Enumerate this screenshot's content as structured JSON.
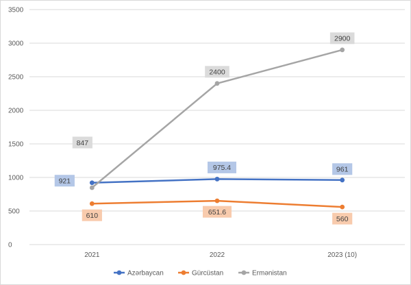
{
  "chart_data": {
    "type": "line",
    "categories": [
      "2021",
      "2022",
      "2023 (10)"
    ],
    "ylim": [
      0,
      3500
    ],
    "yticks": [
      0,
      500,
      1000,
      1500,
      2000,
      2500,
      3000,
      3500
    ],
    "grid": true,
    "legend_position": "bottom",
    "series": [
      {
        "name": "Azərbaycan",
        "values": [
          921,
          975.4,
          961
        ],
        "labels": [
          "921",
          "975.4",
          "961"
        ],
        "color": "#4472C4",
        "label_bg": "#B4C7E7"
      },
      {
        "name": "Gürcüstan",
        "values": [
          610,
          651.6,
          560
        ],
        "labels": [
          "610",
          "651.6",
          "560"
        ],
        "color": "#ED7D31",
        "label_bg": "#F8CBAD"
      },
      {
        "name": "Ermənistan",
        "values": [
          847,
          2400,
          2900
        ],
        "labels": [
          "847",
          "2400",
          "2900"
        ],
        "color": "#A5A5A5",
        "label_bg": "#DBDBDB"
      }
    ]
  }
}
